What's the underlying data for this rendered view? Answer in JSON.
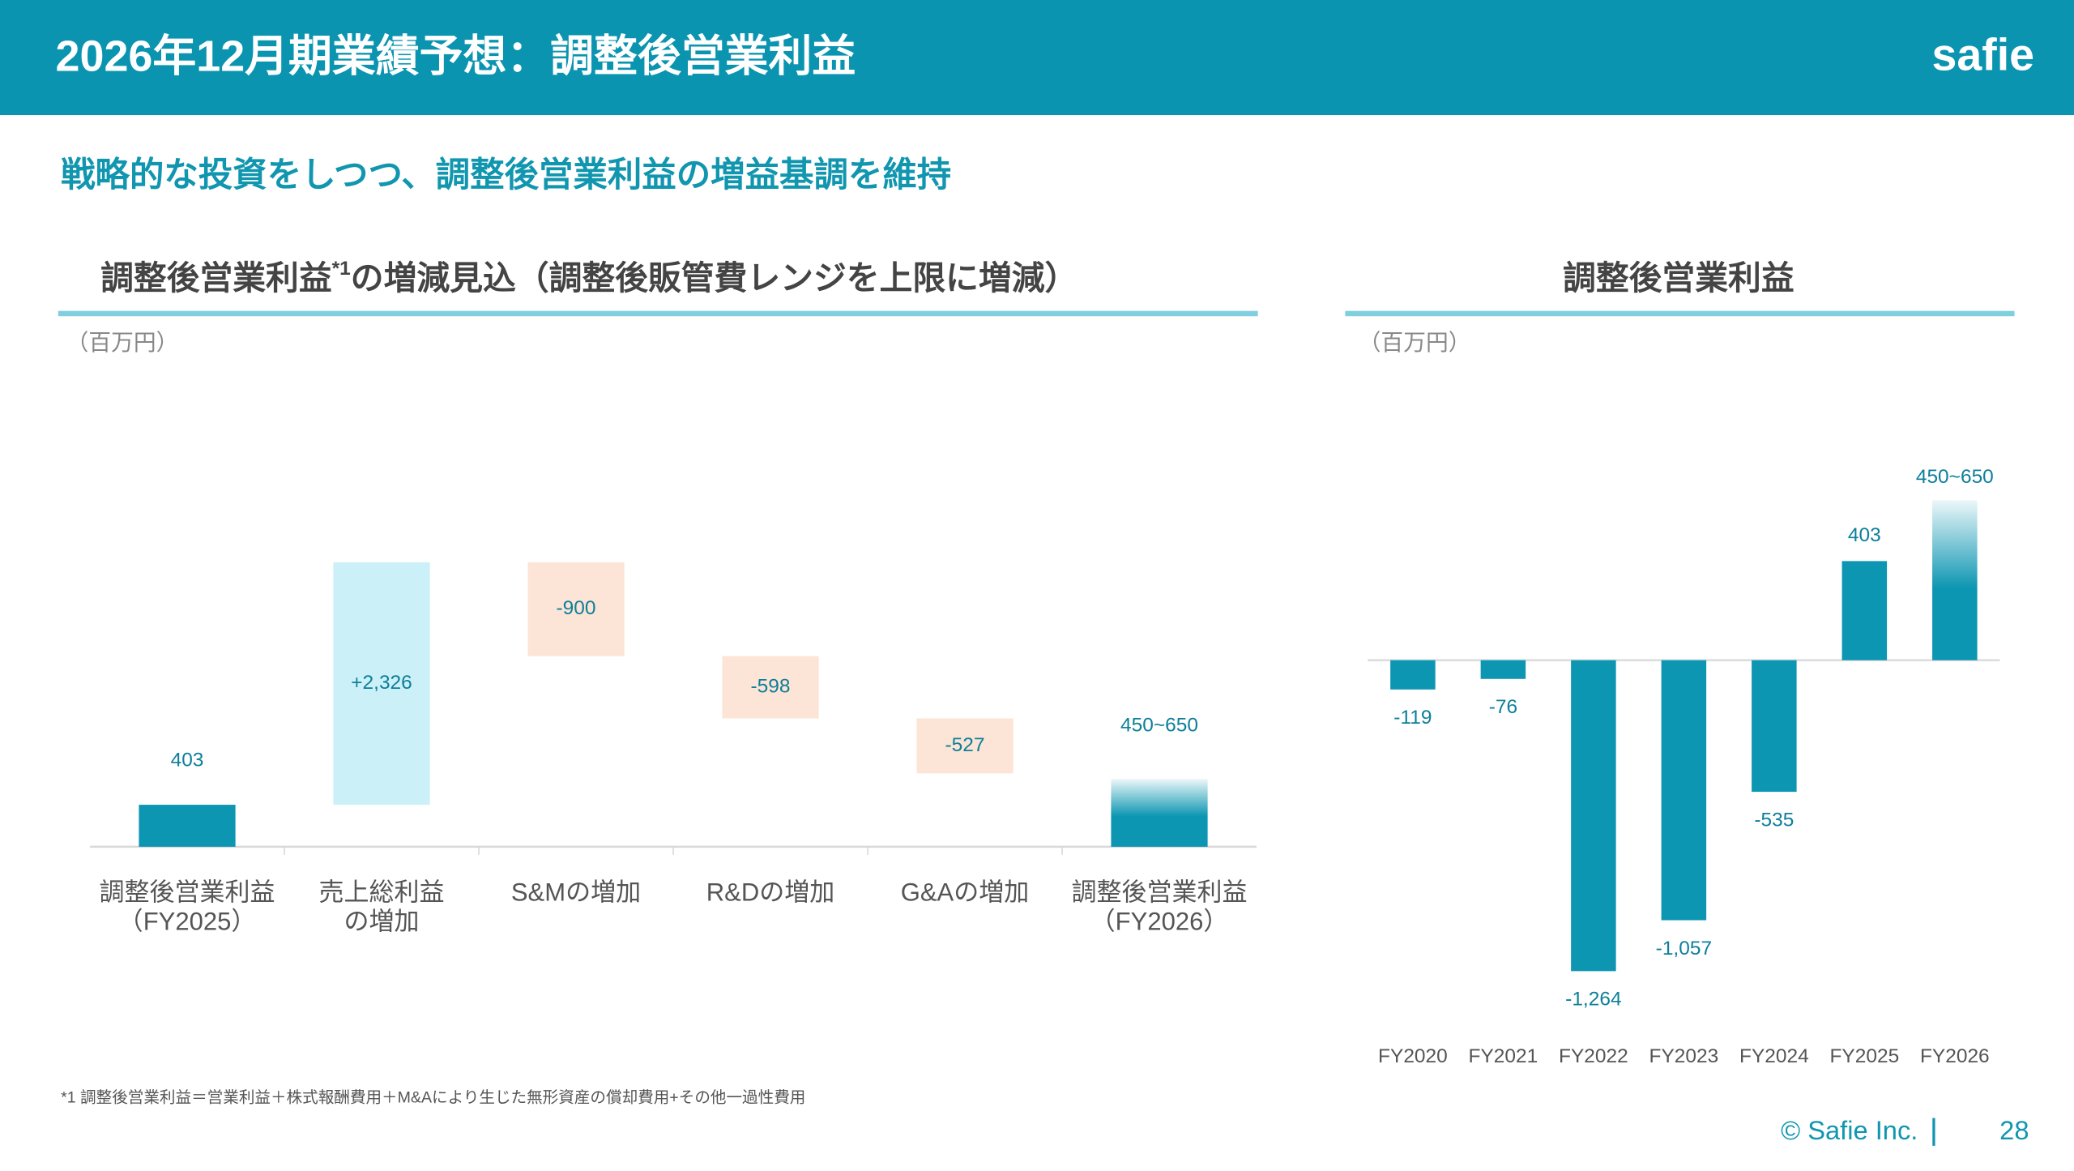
{
  "header": {
    "title": "2026年12月期業績予想：調整後営業利益",
    "logo": "safie"
  },
  "subtitle": "戦略的な投資をしつつ、調整後営業利益の増益基調を維持",
  "chart_data": [
    {
      "type": "waterfall",
      "title": "調整後営業利益",
      "title_note": "*1",
      "title_rest": "の増減見込（調整後販管費レンジを上限に増減）",
      "unit": "（百万円）",
      "categories": [
        "調整後営業利益\n（FY2025）",
        "売上総利益\nの増加",
        "S&Mの増加",
        "R&Dの増加",
        "G&Aの増加",
        "調整後営業利益\n（FY2026）"
      ],
      "values": [
        403,
        2326,
        -900,
        -598,
        -527,
        null
      ],
      "value_labels": [
        "403",
        "+2,326",
        "-900",
        "-598",
        "-527",
        null
      ],
      "forecast": {
        "low": 450,
        "high": 650,
        "label": "450~650"
      },
      "colors": {
        "total": "#0d96b2",
        "increase": "#ccf0f7",
        "decrease": "#fce4d6"
      }
    },
    {
      "type": "bar",
      "title": "調整後営業利益",
      "unit": "（百万円）",
      "categories": [
        "FY2020",
        "FY2021",
        "FY2022",
        "FY2023",
        "FY2024",
        "FY2025",
        "FY2026"
      ],
      "values": [
        -119,
        -76,
        -1264,
        -1057,
        -535,
        403,
        null
      ],
      "value_labels": [
        "-119",
        "-76",
        "-1,264",
        "-1,057",
        "-535",
        "403",
        null
      ],
      "forecast": {
        "low": 450,
        "high": 650,
        "label": "450~650"
      },
      "color": "#0d96b2"
    }
  ],
  "footnote": "*1 調整後営業利益＝営業利益＋株式報酬費用＋M&Aにより生じた無形資産の償却費用+その他一過性費用",
  "footer": {
    "copyright": "© Safie Inc.",
    "page": "28"
  }
}
